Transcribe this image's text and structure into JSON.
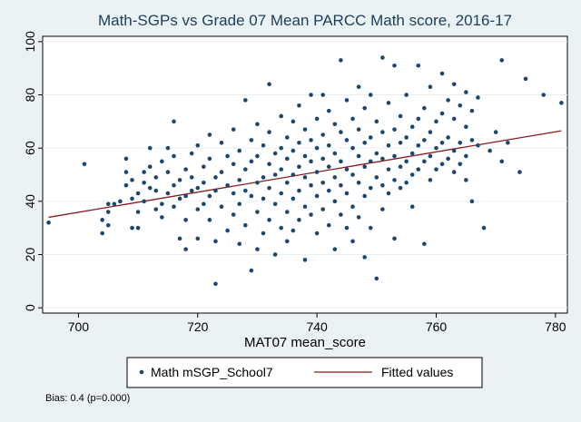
{
  "chart_data": {
    "type": "scatter",
    "title": "Math-SGPs vs Grade 07 Mean PARCC Math score, 2016-17",
    "xlabel": "MAT07 mean_score",
    "ylabel": "",
    "xlim": [
      694,
      782
    ],
    "ylim": [
      -2,
      102
    ],
    "x_ticks": [
      "700",
      "720",
      "740",
      "760",
      "780"
    ],
    "y_ticks": [
      "0",
      "20",
      "40",
      "60",
      "80",
      "100"
    ],
    "grid": "horizontal",
    "legend_position": "bottom",
    "series": [
      {
        "name": "Math mSGP_School7",
        "type": "scatter",
        "color": "#1a476f",
        "points": [
          [
            695,
            32
          ],
          [
            701,
            54
          ],
          [
            704,
            28
          ],
          [
            704,
            33
          ],
          [
            705,
            36
          ],
          [
            705,
            31
          ],
          [
            705,
            39
          ],
          [
            706,
            39
          ],
          [
            707,
            40
          ],
          [
            708,
            56
          ],
          [
            708,
            51
          ],
          [
            708,
            46
          ],
          [
            709,
            48
          ],
          [
            709,
            41
          ],
          [
            709,
            30
          ],
          [
            710,
            36
          ],
          [
            710,
            43
          ],
          [
            710,
            30
          ],
          [
            711,
            47
          ],
          [
            711,
            51
          ],
          [
            711,
            40
          ],
          [
            712,
            60
          ],
          [
            712,
            45
          ],
          [
            712,
            53
          ],
          [
            713,
            49
          ],
          [
            713,
            44
          ],
          [
            713,
            37
          ],
          [
            714,
            55
          ],
          [
            714,
            39
          ],
          [
            714,
            34
          ],
          [
            715,
            60
          ],
          [
            715,
            51
          ],
          [
            715,
            43
          ],
          [
            716,
            70
          ],
          [
            716,
            57
          ],
          [
            716,
            46
          ],
          [
            716,
            38
          ],
          [
            717,
            48
          ],
          [
            717,
            41
          ],
          [
            717,
            26
          ],
          [
            718,
            52
          ],
          [
            718,
            42
          ],
          [
            718,
            33
          ],
          [
            718,
            22
          ],
          [
            719,
            58
          ],
          [
            719,
            49
          ],
          [
            719,
            44
          ],
          [
            720,
            61
          ],
          [
            720,
            45
          ],
          [
            720,
            37
          ],
          [
            720,
            26
          ],
          [
            721,
            53
          ],
          [
            721,
            47
          ],
          [
            721,
            39
          ],
          [
            722,
            65
          ],
          [
            722,
            56
          ],
          [
            722,
            42
          ],
          [
            722,
            33
          ],
          [
            723,
            49
          ],
          [
            723,
            44
          ],
          [
            723,
            25
          ],
          [
            723,
            9
          ],
          [
            724,
            62
          ],
          [
            724,
            51
          ],
          [
            724,
            38
          ],
          [
            725,
            57
          ],
          [
            725,
            46
          ],
          [
            725,
            29
          ],
          [
            726,
            67
          ],
          [
            726,
            54
          ],
          [
            726,
            43
          ],
          [
            726,
            35
          ],
          [
            727,
            59
          ],
          [
            727,
            48
          ],
          [
            727,
            39
          ],
          [
            727,
            24
          ],
          [
            728,
            78
          ],
          [
            728,
            52
          ],
          [
            728,
            44
          ],
          [
            728,
            31
          ],
          [
            729,
            63
          ],
          [
            729,
            55
          ],
          [
            729,
            42
          ],
          [
            729,
            14
          ],
          [
            730,
            69
          ],
          [
            730,
            57
          ],
          [
            730,
            47
          ],
          [
            730,
            36
          ],
          [
            730,
            22
          ],
          [
            731,
            61
          ],
          [
            731,
            49
          ],
          [
            731,
            41
          ],
          [
            731,
            28
          ],
          [
            732,
            84
          ],
          [
            732,
            66
          ],
          [
            732,
            54
          ],
          [
            732,
            45
          ],
          [
            732,
            33
          ],
          [
            733,
            58
          ],
          [
            733,
            50
          ],
          [
            733,
            39
          ],
          [
            733,
            20
          ],
          [
            734,
            72
          ],
          [
            734,
            60
          ],
          [
            734,
            52
          ],
          [
            734,
            43
          ],
          [
            734,
            30
          ],
          [
            735,
            64
          ],
          [
            735,
            56
          ],
          [
            735,
            47
          ],
          [
            735,
            36
          ],
          [
            735,
            25
          ],
          [
            736,
            70
          ],
          [
            736,
            59
          ],
          [
            736,
            50
          ],
          [
            736,
            41
          ],
          [
            736,
            29
          ],
          [
            737,
            76
          ],
          [
            737,
            62
          ],
          [
            737,
            53
          ],
          [
            737,
            44
          ],
          [
            737,
            33
          ],
          [
            738,
            67
          ],
          [
            738,
            57
          ],
          [
            738,
            49
          ],
          [
            738,
            38
          ],
          [
            738,
            18
          ],
          [
            739,
            80
          ],
          [
            739,
            63
          ],
          [
            739,
            55
          ],
          [
            739,
            46
          ],
          [
            739,
            35
          ],
          [
            740,
            71
          ],
          [
            740,
            60
          ],
          [
            740,
            51
          ],
          [
            740,
            42
          ],
          [
            740,
            28
          ],
          [
            741,
            80
          ],
          [
            741,
            65
          ],
          [
            741,
            56
          ],
          [
            741,
            47
          ],
          [
            741,
            37
          ],
          [
            742,
            74
          ],
          [
            742,
            61
          ],
          [
            742,
            53
          ],
          [
            742,
            44
          ],
          [
            742,
            31
          ],
          [
            743,
            69
          ],
          [
            743,
            58
          ],
          [
            743,
            49
          ],
          [
            743,
            40
          ],
          [
            743,
            22
          ],
          [
            744,
            93
          ],
          [
            744,
            66
          ],
          [
            744,
            55
          ],
          [
            744,
            46
          ],
          [
            744,
            35
          ],
          [
            745,
            78
          ],
          [
            745,
            63
          ],
          [
            745,
            52
          ],
          [
            745,
            43
          ],
          [
            745,
            30
          ],
          [
            746,
            71
          ],
          [
            746,
            60
          ],
          [
            746,
            50
          ],
          [
            746,
            38
          ],
          [
            746,
            25
          ],
          [
            747,
            83
          ],
          [
            747,
            67
          ],
          [
            747,
            57
          ],
          [
            747,
            47
          ],
          [
            747,
            34
          ],
          [
            748,
            75
          ],
          [
            748,
            62
          ],
          [
            748,
            53
          ],
          [
            748,
            42
          ],
          [
            748,
            19
          ],
          [
            749,
            80
          ],
          [
            749,
            64
          ],
          [
            749,
            55
          ],
          [
            749,
            45
          ],
          [
            749,
            30
          ],
          [
            750,
            70
          ],
          [
            750,
            58
          ],
          [
            750,
            49
          ],
          [
            750,
            11
          ],
          [
            751,
            94
          ],
          [
            751,
            66
          ],
          [
            751,
            56
          ],
          [
            751,
            46
          ],
          [
            751,
            37
          ],
          [
            752,
            77
          ],
          [
            752,
            61
          ],
          [
            752,
            52
          ],
          [
            752,
            43
          ],
          [
            753,
            91
          ],
          [
            753,
            67
          ],
          [
            753,
            57
          ],
          [
            753,
            48
          ],
          [
            753,
            26
          ],
          [
            754,
            72
          ],
          [
            754,
            62
          ],
          [
            754,
            53
          ],
          [
            754,
            45
          ],
          [
            755,
            80
          ],
          [
            755,
            64
          ],
          [
            755,
            55
          ],
          [
            755,
            47
          ],
          [
            756,
            68
          ],
          [
            756,
            58
          ],
          [
            756,
            50
          ],
          [
            756,
            38
          ],
          [
            757,
            91
          ],
          [
            757,
            71
          ],
          [
            757,
            61
          ],
          [
            757,
            52
          ],
          [
            758,
            75
          ],
          [
            758,
            63
          ],
          [
            758,
            55
          ],
          [
            758,
            24
          ],
          [
            759,
            83
          ],
          [
            759,
            66
          ],
          [
            759,
            57
          ],
          [
            759,
            48
          ],
          [
            760,
            70
          ],
          [
            760,
            60
          ],
          [
            760,
            52
          ],
          [
            761,
            88
          ],
          [
            761,
            73
          ],
          [
            761,
            62
          ],
          [
            761,
            54
          ],
          [
            762,
            78
          ],
          [
            762,
            64
          ],
          [
            762,
            56
          ],
          [
            763,
            84
          ],
          [
            763,
            71
          ],
          [
            763,
            59
          ],
          [
            763,
            51
          ],
          [
            764,
            76
          ],
          [
            764,
            62
          ],
          [
            764,
            54
          ],
          [
            765,
            81
          ],
          [
            765,
            68
          ],
          [
            765,
            57
          ],
          [
            765,
            48
          ],
          [
            766,
            74
          ],
          [
            766,
            63
          ],
          [
            766,
            40
          ],
          [
            767,
            79
          ],
          [
            767,
            61
          ],
          [
            768,
            30
          ],
          [
            769,
            59
          ],
          [
            770,
            66
          ],
          [
            771,
            93
          ],
          [
            771,
            55
          ],
          [
            772,
            62
          ],
          [
            774,
            51
          ],
          [
            775,
            86
          ],
          [
            778,
            80
          ],
          [
            781,
            77
          ]
        ]
      },
      {
        "name": "Fitted values",
        "type": "line",
        "color": "#8b1a1a",
        "points": [
          [
            695,
            34
          ],
          [
            781,
            66.5
          ]
        ]
      }
    ]
  },
  "note": "Bias:   0.4 (p=0.000)"
}
